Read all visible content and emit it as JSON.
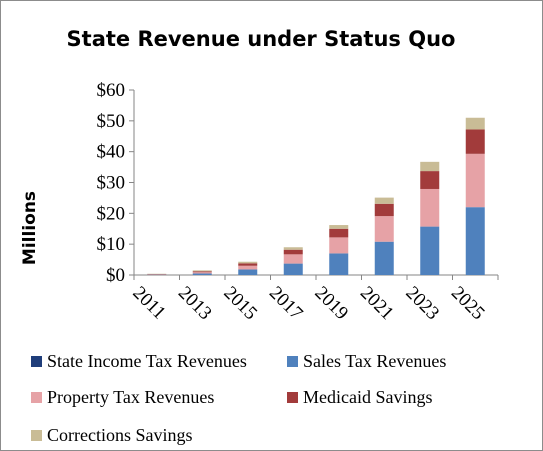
{
  "chart_data": {
    "type": "bar",
    "stacked": true,
    "title": "State Revenue under Status Quo",
    "xlabel": "",
    "ylabel": "Millions",
    "categories": [
      "2011",
      "2013",
      "2015",
      "2017",
      "2019",
      "2021",
      "2023",
      "2025"
    ],
    "ylim": [
      0,
      60
    ],
    "yticks": [
      0,
      10,
      20,
      30,
      40,
      50,
      60
    ],
    "ytick_labels": [
      "$0",
      "$10",
      "$20",
      "$30",
      "$40",
      "$50",
      "$60"
    ],
    "grid": false,
    "legend_position": "bottom",
    "series": [
      {
        "name": "State Income Tax Revenues",
        "color": "#1f3d7a",
        "values": [
          0,
          0,
          0,
          0,
          0,
          0,
          0,
          0
        ]
      },
      {
        "name": "Sales Tax Revenues",
        "color": "#4f81bd",
        "values": [
          0.1,
          0.5,
          1.8,
          3.7,
          7.0,
          10.8,
          15.7,
          22.0
        ]
      },
      {
        "name": "Property Tax Revenues",
        "color": "#e6a2a6",
        "values": [
          0.1,
          0.4,
          1.2,
          3.0,
          5.2,
          8.3,
          12.2,
          17.3
        ]
      },
      {
        "name": "Medicaid Savings",
        "color": "#a23b3b",
        "values": [
          0.1,
          0.3,
          0.8,
          1.5,
          2.8,
          4.0,
          5.8,
          7.9
        ]
      },
      {
        "name": "Corrections Savings",
        "color": "#c9bc96",
        "values": [
          0.1,
          0.3,
          0.5,
          0.8,
          1.2,
          2.0,
          3.0,
          3.8
        ]
      }
    ]
  }
}
